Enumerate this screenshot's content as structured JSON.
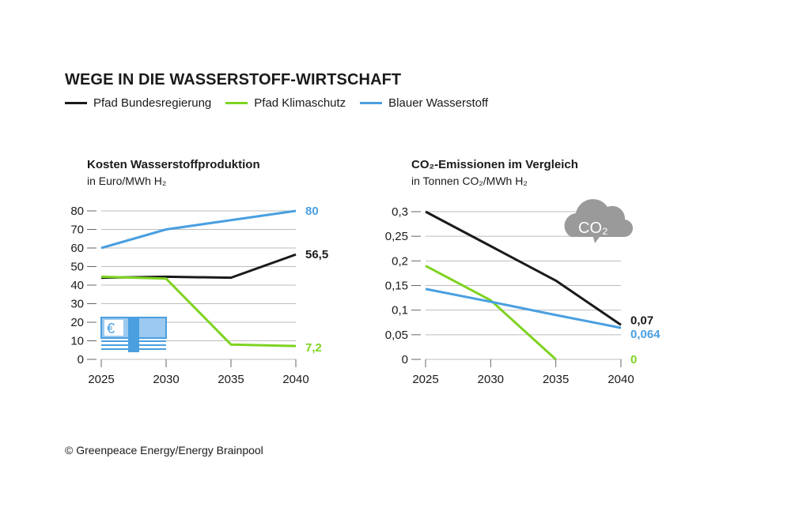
{
  "title": "WEGE IN DIE WASSERSTOFF-WIRTSCHAFT",
  "legend": [
    {
      "name": "Pfad Bundesregierung",
      "color": "#1a1a1a"
    },
    {
      "name": "Pfad Klimaschutz",
      "color": "#7ed321"
    },
    {
      "name": "Blauer Wasserstoff",
      "color": "#4a9fe0"
    }
  ],
  "source": "© Greenpeace Energy/Energy Brainpool",
  "icons": {
    "left": "euro-banknotes-icon",
    "right": "co2-cloud-icon"
  },
  "co2_icon_label": "CO₂",
  "chart_data": [
    {
      "type": "line",
      "title": "Kosten Wasserstoffproduktion",
      "subtitle": "in Euro/MWh H₂",
      "x": [
        2025,
        2030,
        2035,
        2040
      ],
      "yticks": [
        "0",
        "10",
        "20",
        "30",
        "40",
        "50",
        "60",
        "70",
        "80"
      ],
      "ylim": [
        0,
        80
      ],
      "grid": true,
      "series": [
        {
          "name": "Pfad Bundesregierung",
          "color": "#1a1a1a",
          "values": [
            44,
            44.5,
            44,
            56.5
          ],
          "end_label": "56,5"
        },
        {
          "name": "Pfad Klimaschutz",
          "color": "#7ed321",
          "values": [
            44.5,
            43.5,
            8,
            7.2
          ],
          "end_label": "7,2"
        },
        {
          "name": "Blauer Wasserstoff",
          "color": "#4a9fe0",
          "values": [
            60,
            70,
            75,
            80
          ],
          "end_label": "80"
        }
      ]
    },
    {
      "type": "line",
      "title": "CO₂-Emissionen im Vergleich",
      "subtitle": "in Tonnen CO₂/MWh H₂",
      "x": [
        2025,
        2030,
        2035,
        2040
      ],
      "yticks": [
        "0",
        "0,05",
        "0,1",
        "0,15",
        "0,2",
        "0,25",
        "0,3"
      ],
      "ylim": [
        0,
        0.3
      ],
      "grid": true,
      "series": [
        {
          "name": "Pfad Bundesregierung",
          "color": "#1a1a1a",
          "values": [
            0.3,
            0.23,
            0.16,
            0.07
          ],
          "end_label": "0,07"
        },
        {
          "name": "Pfad Klimaschutz",
          "color": "#7ed321",
          "values": [
            0.19,
            0.12,
            0,
            null
          ],
          "end_label": "0"
        },
        {
          "name": "Blauer Wasserstoff",
          "color": "#4a9fe0",
          "values": [
            0.143,
            0.117,
            0.09,
            0.064
          ],
          "end_label": "0,064"
        }
      ]
    }
  ]
}
